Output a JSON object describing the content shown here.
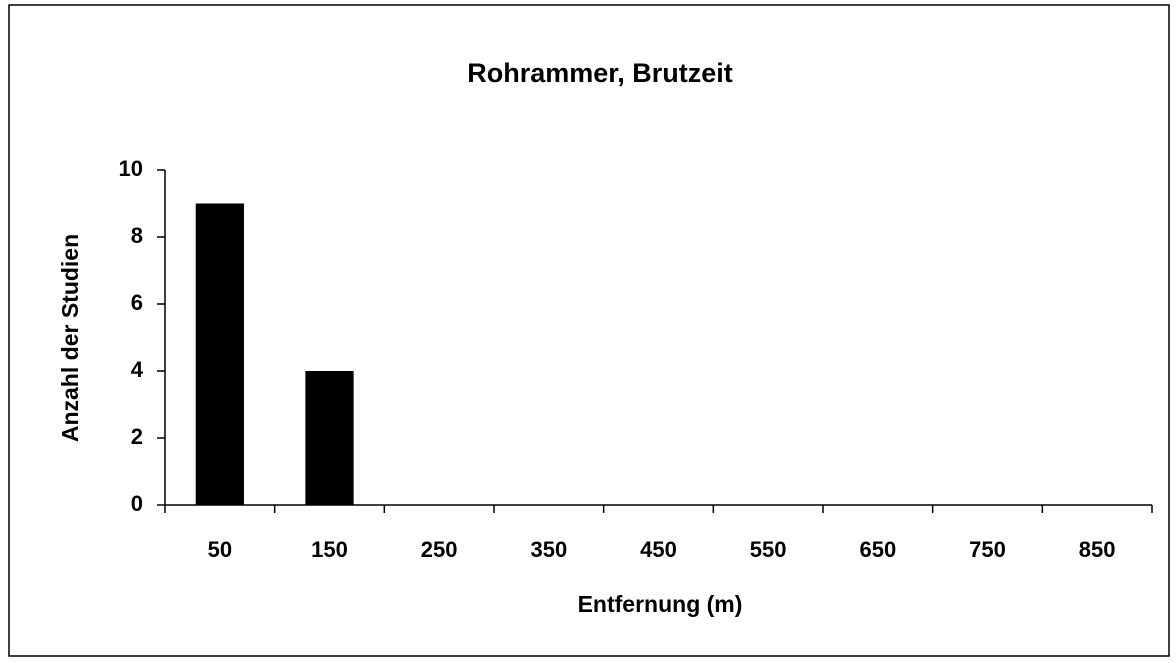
{
  "chart_data": {
    "type": "bar",
    "title": "Rohrammer, Brutzeit",
    "x_label": "Entfernung (m)",
    "y_label": "Anzahl der Studien",
    "categories": [
      "50",
      "150",
      "250",
      "350",
      "450",
      "550",
      "650",
      "750",
      "850"
    ],
    "values": [
      9,
      4,
      0,
      0,
      0,
      0,
      0,
      0,
      0
    ],
    "color": "#000000",
    "ylim": [
      0,
      10
    ],
    "yticks": [
      0,
      2,
      4,
      6,
      8,
      10
    ],
    "grid": false
  }
}
